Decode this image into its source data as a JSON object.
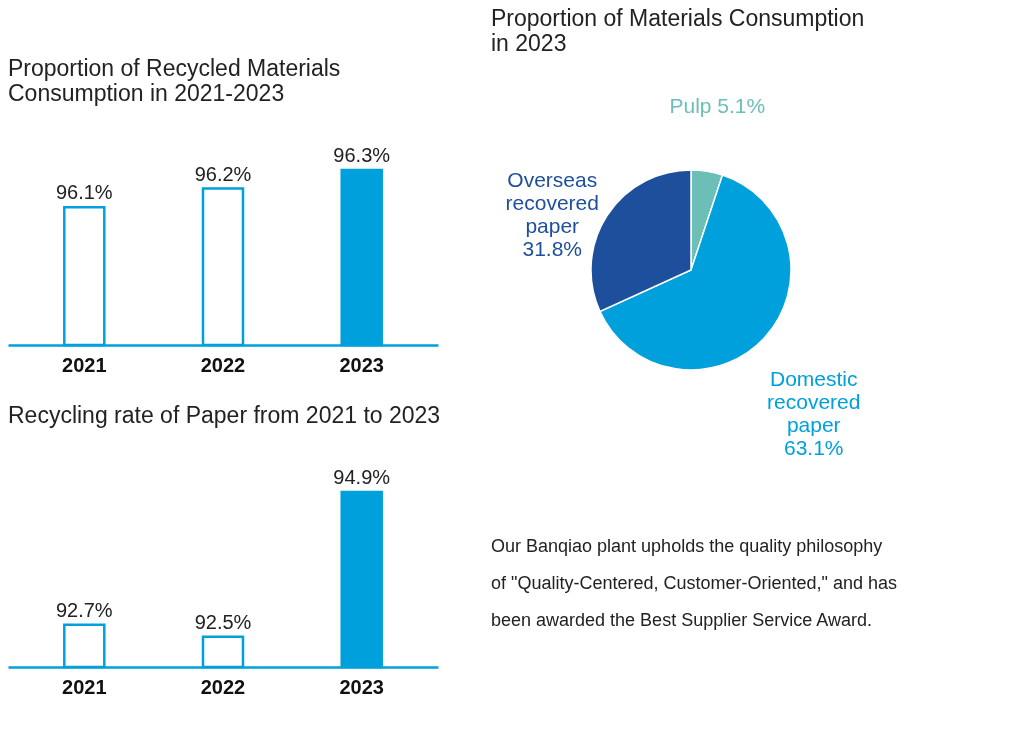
{
  "chart_data": [
    {
      "type": "bar",
      "title": "Proportion of Recycled Materials Consumption in 2021-2023",
      "categories": [
        "2021",
        "2022",
        "2023"
      ],
      "values": [
        96.1,
        96.2,
        96.3
      ],
      "value_labels": [
        "96.1%",
        "96.2%",
        "96.3%"
      ],
      "color": "#00a0dc",
      "colors": [
        "#ffffff",
        "#ffffff",
        "#00a0dc"
      ],
      "ylim": [
        95.36,
        96.3
      ],
      "tick_labels": "x",
      "grid": false
    },
    {
      "type": "pie",
      "title": "Proportion of Materials Consumption in 2023",
      "categories": [
        "Pulp",
        "Domestic recovered paper",
        "Overseas recovered paper"
      ],
      "values": [
        5.1,
        63.1,
        31.8
      ],
      "value_labels": [
        "5.1%",
        "63.1%",
        "31.8%"
      ],
      "colors": [
        "#6cbfb6",
        "#00a0dc",
        "#1e4f9c"
      ]
    },
    {
      "type": "bar",
      "title": "Recycling rate of Paper from 2021 to 2023",
      "categories": [
        "2021",
        "2022",
        "2023"
      ],
      "values": [
        92.7,
        92.5,
        94.9
      ],
      "value_labels": [
        "92.7%",
        "92.5%",
        "94.9%"
      ],
      "color": "#00a0dc",
      "colors": [
        "#ffffff",
        "#ffffff",
        "#00a0dc"
      ],
      "ylim": [
        92.0,
        94.9
      ],
      "tick_labels": "x",
      "grid": false
    },
    {
      "type": "other",
      "annotations": [
        "Our Banqiao plant upholds the quality philosophy of \"Quality-Centered, Customer-Oriented,\" and has been awarded the Best Supplier Service Award."
      ]
    }
  ]
}
